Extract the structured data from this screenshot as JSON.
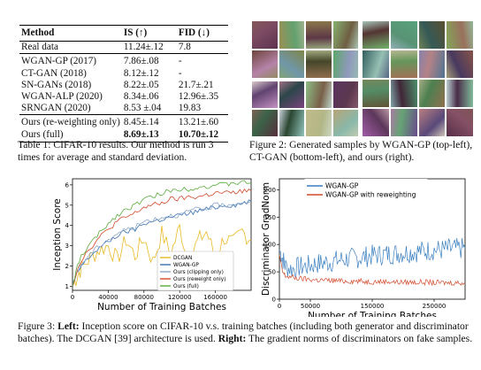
{
  "table": {
    "headers": [
      "Method",
      "IS (↑)",
      "FID (↓)"
    ],
    "rows": [
      {
        "method": "Real data",
        "is": "11.24±.12",
        "fid": "7.8",
        "bold": false,
        "group": 0
      },
      {
        "method": "WGAN-GP (2017)",
        "is": "7.86±.08",
        "fid": "-",
        "bold": false,
        "group": 1
      },
      {
        "method": "CT-GAN (2018)",
        "is": "8.12±.12",
        "fid": "-",
        "bold": false,
        "group": 1
      },
      {
        "method": "SN-GANs (2018)",
        "is": "8.22±.05",
        "fid": "21.7±.21",
        "bold": false,
        "group": 1
      },
      {
        "method": "WGAN-ALP (2020)",
        "is": "8.34±.06",
        "fid": "12.96±.35",
        "bold": false,
        "group": 1
      },
      {
        "method": "SRNGAN (2020)",
        "is": "8.53 ±.04",
        "fid": "19.83",
        "bold": false,
        "group": 1
      },
      {
        "method": "Ours (re-weighting only)",
        "is": "8.45±.14",
        "fid": "13.21±.60",
        "bold": false,
        "group": 2
      },
      {
        "method": "Ours (full)",
        "is": "8.69±.13",
        "fid": "10.70±.12",
        "bold": true,
        "group": 2
      }
    ]
  },
  "captions": {
    "table1": "Table 1: CIFAR-10 results. Our method is run 3 times for average and standard deviation.",
    "fig2": "Figure 2: Generated samples by WGAN-GP (top-left), CT-GAN (bottom-left), and ours (right).",
    "fig3_label": "Figure 3:",
    "fig3_left": "Left:",
    "fig3_text1": "Inception score on CIFAR-10 v.s. training batches (including both generator and discriminator batches). The DCGAN [39] architecture is used.",
    "fig3_right": "Right:",
    "fig3_text2": "The gradient norms of discriminators on fake samples."
  },
  "chart_data": [
    {
      "type": "line",
      "xlabel": "Number of Training Batches",
      "ylabel": "Inception Score",
      "xlim": [
        0,
        200000
      ],
      "ylim": [
        0.8,
        6.3
      ],
      "xticks": [
        0,
        40000,
        80000,
        120000,
        160000
      ],
      "yticks": [
        1,
        2,
        3,
        4,
        5,
        6
      ],
      "legend": "bottom-right",
      "series": [
        {
          "name": "DCGAN",
          "color": "#e8b923",
          "x": [
            0,
            5000,
            10000,
            20000,
            30000,
            40000,
            50000,
            60000,
            70000,
            80000,
            90000,
            100000,
            110000,
            120000,
            130000,
            140000,
            150000,
            160000,
            170000,
            180000,
            190000,
            200000
          ],
          "y": [
            1.0,
            1.5,
            1.9,
            2.4,
            2.8,
            3.0,
            2.3,
            3.3,
            2.5,
            3.4,
            2.2,
            3.6,
            2.6,
            3.9,
            2.2,
            3.2,
            3.7,
            2.4,
            3.4,
            3.1,
            3.7,
            3.3
          ]
        },
        {
          "name": "WGAN-GP",
          "color": "#3a6fb0",
          "x": [
            0,
            5000,
            10000,
            20000,
            30000,
            40000,
            50000,
            60000,
            70000,
            80000,
            90000,
            100000,
            110000,
            120000,
            130000,
            140000,
            150000,
            160000,
            170000,
            180000,
            190000,
            200000
          ],
          "y": [
            1.0,
            1.6,
            2.0,
            2.5,
            2.9,
            3.2,
            3.5,
            3.7,
            3.8,
            4.1,
            4.2,
            4.3,
            4.4,
            4.5,
            4.6,
            4.7,
            4.8,
            4.9,
            5.0,
            5.0,
            5.1,
            5.2
          ]
        },
        {
          "name": "Ours (clipping only)",
          "color": "#8aa8c8",
          "x": [
            0,
            5000,
            10000,
            20000,
            30000,
            40000,
            50000,
            60000,
            70000,
            80000,
            90000,
            100000,
            110000,
            120000,
            130000,
            140000,
            150000,
            160000,
            170000,
            180000,
            190000,
            200000
          ],
          "y": [
            1.0,
            1.7,
            2.1,
            2.6,
            3.0,
            3.3,
            3.6,
            3.8,
            3.9,
            4.2,
            4.3,
            4.4,
            4.5,
            4.5,
            4.7,
            4.8,
            4.8,
            5.0,
            5.0,
            5.1,
            5.1,
            5.2
          ]
        },
        {
          "name": "Ours (reweight only)",
          "color": "#d24a2a",
          "x": [
            0,
            5000,
            10000,
            20000,
            30000,
            40000,
            50000,
            60000,
            70000,
            80000,
            90000,
            100000,
            110000,
            120000,
            130000,
            140000,
            150000,
            160000,
            170000,
            180000,
            190000,
            200000
          ],
          "y": [
            1.0,
            1.8,
            2.3,
            2.9,
            3.4,
            3.8,
            4.2,
            4.4,
            4.6,
            4.9,
            5.0,
            5.1,
            5.3,
            5.3,
            5.4,
            5.4,
            5.5,
            5.6,
            5.6,
            5.6,
            5.7,
            5.7
          ]
        },
        {
          "name": "Ours (full)",
          "color": "#5aaa3c",
          "x": [
            0,
            5000,
            10000,
            20000,
            30000,
            40000,
            50000,
            60000,
            70000,
            80000,
            90000,
            100000,
            110000,
            120000,
            130000,
            140000,
            150000,
            160000,
            170000,
            180000,
            190000,
            200000
          ],
          "y": [
            1.0,
            1.9,
            2.5,
            3.1,
            3.6,
            4.1,
            4.5,
            4.8,
            5.0,
            5.3,
            5.4,
            5.6,
            5.7,
            5.8,
            5.8,
            5.9,
            5.9,
            6.0,
            6.0,
            6.1,
            6.1,
            6.1
          ]
        }
      ]
    },
    {
      "type": "line",
      "xlabel": "Number of Training Batches",
      "ylabel": "Discriminator GradNorm",
      "xlim": [
        0,
        300000
      ],
      "ylim": [
        0,
        220
      ],
      "xticks": [
        0,
        50000,
        150000,
        250000
      ],
      "yticks": [
        0,
        50,
        100,
        150,
        200
      ],
      "legend": "top-center",
      "series": [
        {
          "name": "WGAN-GP",
          "color": "#3a7fc0",
          "x": [
            0,
            5000,
            10000,
            20000,
            30000,
            40000,
            50000,
            60000,
            70000,
            80000,
            90000,
            100000,
            110000,
            120000,
            130000,
            140000,
            150000,
            160000,
            170000,
            180000,
            190000,
            200000,
            210000,
            220000,
            230000,
            240000,
            250000,
            260000,
            270000,
            280000,
            290000,
            300000
          ],
          "y": [
            90,
            75,
            60,
            55,
            58,
            60,
            62,
            65,
            66,
            68,
            70,
            72,
            74,
            75,
            76,
            78,
            80,
            81,
            82,
            83,
            84,
            85,
            86,
            87,
            88,
            89,
            90,
            90,
            91,
            92,
            92,
            93
          ]
        },
        {
          "name": "WGAN-GP with reweighting",
          "color": "#d24a2a",
          "x": [
            0,
            5000,
            10000,
            20000,
            30000,
            40000,
            50000,
            60000,
            70000,
            80000,
            90000,
            100000,
            110000,
            120000,
            130000,
            140000,
            150000,
            160000,
            170000,
            180000,
            190000,
            200000,
            210000,
            220000,
            230000,
            240000,
            250000,
            260000,
            270000,
            280000,
            290000,
            300000
          ],
          "y": [
            80,
            50,
            42,
            40,
            38,
            37,
            36,
            35,
            35,
            34,
            34,
            33,
            33,
            33,
            33,
            32,
            32,
            32,
            32,
            32,
            31,
            31,
            31,
            31,
            31,
            31,
            30,
            30,
            30,
            30,
            30,
            30
          ]
        }
      ]
    }
  ]
}
